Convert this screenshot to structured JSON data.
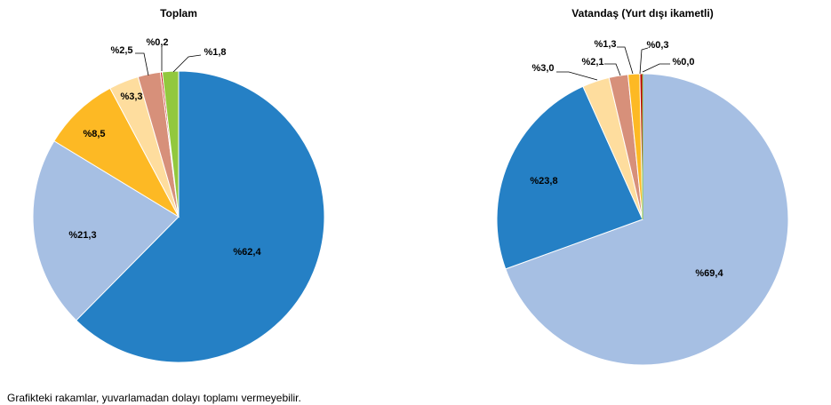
{
  "chart_data": [
    {
      "type": "pie",
      "title": "Toplam",
      "slices": [
        {
          "value": 62.4,
          "label": "%62,4",
          "color": "#2580C5"
        },
        {
          "value": 21.3,
          "label": "%21,3",
          "color": "#A6BFE3"
        },
        {
          "value": 8.5,
          "label": "%8,5",
          "color": "#FDB924"
        },
        {
          "value": 3.3,
          "label": "%3,3",
          "color": "#FEDD9E"
        },
        {
          "value": 2.5,
          "label": "%2,5",
          "color": "#D7907A"
        },
        {
          "value": 0.2,
          "label": "%0,2",
          "color": "#C00000"
        },
        {
          "value": 1.8,
          "label": "%1,8",
          "color": "#92C83E"
        }
      ]
    },
    {
      "type": "pie",
      "title": "Vatandaş (Yurt dışı ikametli)",
      "slices": [
        {
          "value": 69.4,
          "label": "%69,4",
          "color": "#A6BFE3"
        },
        {
          "value": 23.8,
          "label": "%23,8",
          "color": "#2580C5"
        },
        {
          "value": 3.0,
          "label": "%3,0",
          "color": "#FEDD9E"
        },
        {
          "value": 2.1,
          "label": "%2,1",
          "color": "#D7907A"
        },
        {
          "value": 1.3,
          "label": "%1,3",
          "color": "#FDB924"
        },
        {
          "value": 0.3,
          "label": "%0,3",
          "color": "#C00000"
        },
        {
          "value": 0.0,
          "label": "%0,0",
          "color": "#92C83E"
        }
      ]
    }
  ],
  "footnote": "Grafikteki rakamlar, yuvarlamadan dolayı toplamı vermeyebilir."
}
